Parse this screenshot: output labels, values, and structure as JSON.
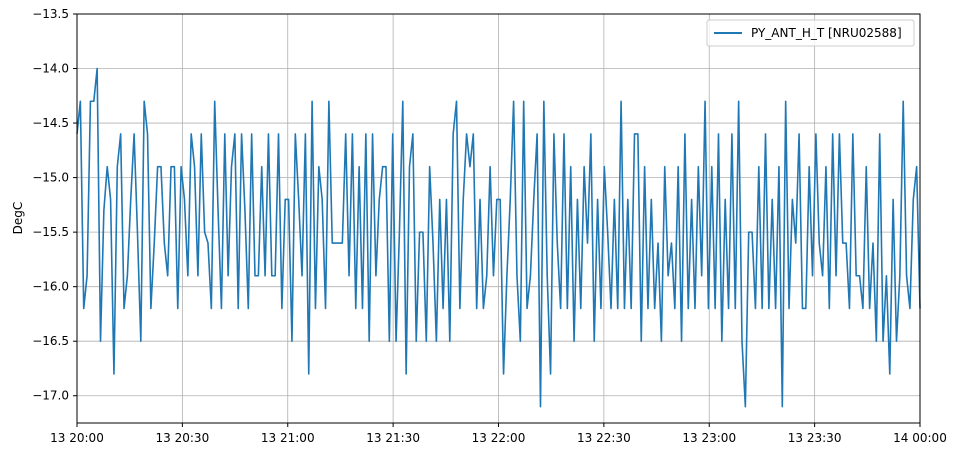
{
  "chart_data": {
    "type": "line",
    "title": "",
    "xlabel": "",
    "ylabel": "DegC",
    "ylim": [
      -17.25,
      -13.5
    ],
    "xlim": [
      "13 20:00",
      "14 00:00"
    ],
    "grid": true,
    "legend_position": "top-right",
    "x_tick_labels": [
      "13 20:00",
      "13 20:30",
      "13 21:00",
      "13 21:30",
      "13 22:00",
      "13 22:30",
      "13 23:00",
      "13 23:30",
      "14 00:00"
    ],
    "y_ticks": [
      -17.0,
      -16.5,
      -16.0,
      -15.5,
      -15.0,
      -14.5,
      -14.0,
      -13.5
    ],
    "y_tick_labels": [
      "−17.0",
      "−16.5",
      "−16.0",
      "−15.5",
      "−15.0",
      "−14.5",
      "−14.0",
      "−13.5"
    ],
    "series": [
      {
        "name": "PY_ANT_H_T [NRU02588]",
        "color": "#1f77b4",
        "x_start": "13 20:00",
        "x_end": "14 00:00",
        "values": [
          -14.6,
          -14.3,
          -16.2,
          -15.9,
          -14.3,
          -14.3,
          -14.0,
          -16.5,
          -15.3,
          -14.9,
          -15.2,
          -16.8,
          -14.9,
          -14.6,
          -16.2,
          -15.9,
          -15.2,
          -14.6,
          -15.5,
          -16.5,
          -14.3,
          -14.6,
          -16.2,
          -15.6,
          -14.9,
          -14.9,
          -15.6,
          -15.9,
          -14.9,
          -14.9,
          -16.2,
          -14.9,
          -15.2,
          -15.9,
          -14.6,
          -14.9,
          -15.9,
          -14.6,
          -15.5,
          -15.6,
          -16.2,
          -14.3,
          -15.3,
          -16.2,
          -14.6,
          -15.9,
          -14.9,
          -14.6,
          -16.2,
          -14.6,
          -15.3,
          -16.2,
          -14.6,
          -15.9,
          -15.9,
          -14.9,
          -15.9,
          -14.6,
          -15.9,
          -15.9,
          -14.6,
          -16.2,
          -15.2,
          -15.2,
          -16.5,
          -14.6,
          -15.2,
          -15.9,
          -14.6,
          -16.8,
          -14.3,
          -16.2,
          -14.9,
          -15.2,
          -16.2,
          -14.3,
          -15.6,
          -15.6,
          -15.6,
          -15.6,
          -14.6,
          -15.9,
          -14.6,
          -16.2,
          -14.9,
          -16.2,
          -14.6,
          -16.5,
          -14.6,
          -15.9,
          -15.2,
          -14.9,
          -14.9,
          -16.5,
          -14.6,
          -16.5,
          -15.5,
          -14.3,
          -16.8,
          -14.9,
          -14.6,
          -16.5,
          -15.5,
          -15.5,
          -16.5,
          -14.9,
          -15.6,
          -16.5,
          -15.2,
          -16.2,
          -15.2,
          -16.5,
          -14.6,
          -14.3,
          -16.2,
          -15.2,
          -14.6,
          -14.9,
          -14.6,
          -16.2,
          -15.2,
          -16.2,
          -15.9,
          -14.9,
          -15.9,
          -15.2,
          -15.2,
          -16.8,
          -15.9,
          -15.2,
          -14.3,
          -15.9,
          -16.5,
          -14.3,
          -16.2,
          -15.9,
          -15.2,
          -14.6,
          -17.1,
          -14.3,
          -15.9,
          -16.8,
          -14.6,
          -15.6,
          -16.2,
          -14.6,
          -16.2,
          -14.9,
          -16.5,
          -15.2,
          -16.2,
          -14.9,
          -15.6,
          -14.6,
          -16.5,
          -15.2,
          -16.2,
          -14.9,
          -15.5,
          -16.2,
          -15.2,
          -16.2,
          -14.3,
          -16.2,
          -15.2,
          -16.2,
          -14.6,
          -14.6,
          -16.5,
          -14.9,
          -16.2,
          -15.2,
          -16.2,
          -15.6,
          -16.5,
          -14.9,
          -15.9,
          -15.6,
          -16.2,
          -14.9,
          -16.5,
          -14.6,
          -16.2,
          -15.2,
          -16.2,
          -14.9,
          -15.9,
          -14.3,
          -16.2,
          -14.9,
          -16.2,
          -14.6,
          -16.5,
          -15.2,
          -16.2,
          -14.6,
          -16.2,
          -14.3,
          -16.5,
          -17.1,
          -15.5,
          -15.5,
          -16.2,
          -14.9,
          -16.2,
          -14.6,
          -16.2,
          -15.2,
          -16.2,
          -14.9,
          -17.1,
          -14.3,
          -16.2,
          -15.2,
          -15.6,
          -14.6,
          -16.2,
          -16.2,
          -14.9,
          -15.9,
          -14.6,
          -15.6,
          -15.9,
          -14.9,
          -16.2,
          -14.6,
          -15.9,
          -14.6,
          -15.6,
          -15.6,
          -16.2,
          -14.6,
          -15.9,
          -15.9,
          -16.2,
          -14.9,
          -16.2,
          -15.6,
          -16.5,
          -14.6,
          -16.5,
          -15.9,
          -16.8,
          -15.2,
          -16.5,
          -15.9,
          -14.3,
          -15.9,
          -16.2,
          -15.2,
          -14.9,
          -16.2
        ]
      }
    ]
  }
}
